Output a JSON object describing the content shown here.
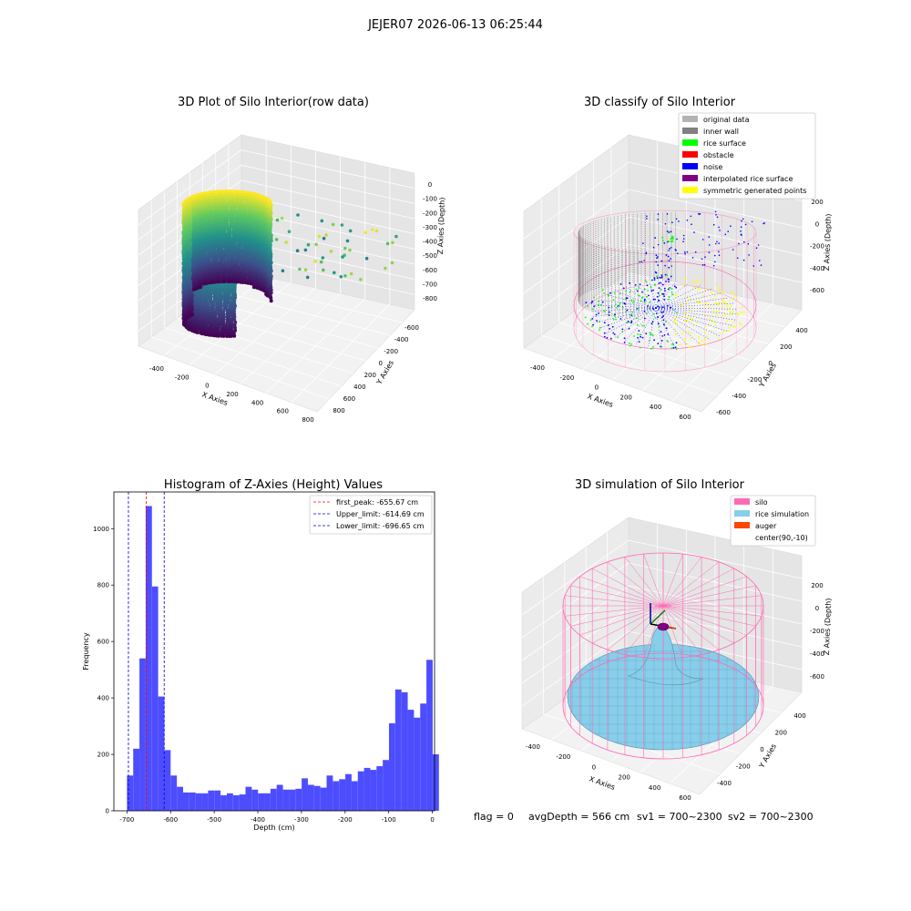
{
  "suptitle": "JEJER07 2026-06-13 06:25:44",
  "colors": {
    "viridis": [
      "#440154",
      "#3b528b",
      "#21918c",
      "#5ec962",
      "#fde725"
    ],
    "original_data": "#b3b3b3",
    "inner_wall": "#808080",
    "rice_surface": "#00ff00",
    "obstacle": "#ff0000",
    "noise": "#0000ff",
    "interpolated_rice_surface": "#800080",
    "symmetric_generated_points": "#ffff00",
    "silo": "#ff69b4",
    "rice_simulation": "#87ceeb",
    "auger": "#ff4500",
    "hist_bar": "#4d4dff"
  },
  "panels": {
    "p1": {
      "title": "3D Plot of Silo Interior(row data)",
      "xlabel": "X Axies",
      "ylabel": "Y Axies",
      "zlabel": "Z Axies (Depth)",
      "xticks": [
        "-400",
        "-200",
        "0",
        "200",
        "400",
        "600",
        "800"
      ],
      "yticks": [
        "-600",
        "-400",
        "-200",
        "0",
        "200",
        "400",
        "600",
        "800"
      ],
      "zticks": [
        "0",
        "-100",
        "-200",
        "-300",
        "-400",
        "-500",
        "-600",
        "-700",
        "-800"
      ]
    },
    "p2": {
      "title": "3D classify of Silo Interior",
      "xlabel": "X Axies",
      "ylabel": "Y Axies",
      "zlabel": "Z Axies (Depth)",
      "xticks": [
        "-400",
        "-200",
        "0",
        "200",
        "400",
        "600"
      ],
      "yticks": [
        "-600",
        "-400",
        "-200",
        "0",
        "200",
        "400"
      ],
      "zticks": [
        "200",
        "0",
        "-200",
        "-400",
        "-600"
      ],
      "legend": [
        {
          "label": "original data",
          "color": "#b3b3b3"
        },
        {
          "label": "inner wall",
          "color": "#808080"
        },
        {
          "label": "rice surface",
          "color": "#00ff00"
        },
        {
          "label": "obstacle",
          "color": "#ff0000"
        },
        {
          "label": "noise",
          "color": "#0000ff"
        },
        {
          "label": "interpolated rice surface",
          "color": "#800080"
        },
        {
          "label": "symmetric generated points",
          "color": "#ffff00"
        }
      ]
    },
    "p4": {
      "title": "3D simulation of Silo Interior",
      "xlabel": "X Axies",
      "ylabel": "Y Axies",
      "zlabel": "Z Axies (Depth)",
      "xticks": [
        "-400",
        "-200",
        "0",
        "200",
        "400",
        "600"
      ],
      "yticks": [
        "-400",
        "-200",
        "0",
        "200",
        "400"
      ],
      "zticks": [
        "200",
        "0",
        "-200",
        "-400",
        "-600"
      ],
      "legend": [
        {
          "label": "silo",
          "color": "#ff69b4"
        },
        {
          "label": "rice simulation",
          "color": "#87ceeb"
        },
        {
          "label": "auger",
          "color": "#ff4500"
        },
        {
          "label": "center(90,-10)",
          "color": ""
        }
      ]
    }
  },
  "footer": {
    "flag": "flag = 0",
    "avg": "avgDepth = 566 cm",
    "sv1": "sv1 = 700~2300",
    "sv2": "sv2 = 700~2300"
  },
  "chart_data": [
    {
      "type": "scatter",
      "title": "3D Plot of Silo Interior(row data)",
      "xlabel": "X Axies",
      "ylabel": "Y Axies",
      "zlabel": "Z Axies (Depth)",
      "xlim": [
        -500,
        800
      ],
      "ylim": [
        -650,
        850
      ],
      "zlim": [
        -850,
        0
      ],
      "colormap": "viridis",
      "grid": true
    },
    {
      "type": "scatter",
      "title": "3D classify of Silo Interior",
      "xlabel": "X Axies",
      "ylabel": "Y Axies",
      "zlabel": "Z Axies (Depth)",
      "xlim": [
        -500,
        650
      ],
      "ylim": [
        -650,
        450
      ],
      "zlim": [
        -700,
        250
      ],
      "legend_position": "top-right",
      "series": [
        {
          "name": "original data"
        },
        {
          "name": "inner wall"
        },
        {
          "name": "rice surface"
        },
        {
          "name": "obstacle"
        },
        {
          "name": "noise"
        },
        {
          "name": "interpolated rice surface"
        },
        {
          "name": "symmetric generated points"
        }
      ],
      "grid": true
    },
    {
      "type": "bar",
      "title": "Histogram of Z-Axies (Height) Values",
      "xlabel": "Depth (cm)",
      "ylabel": "Frequency",
      "xlim": [
        -730,
        5
      ],
      "ylim": [
        0,
        1130
      ],
      "xticks": [
        -700,
        -600,
        -500,
        -400,
        -300,
        -200,
        -100,
        0
      ],
      "yticks": [
        0,
        200,
        400,
        600,
        800,
        1000
      ],
      "bin_start": -700,
      "bin_width": 14.3,
      "values": [
        125,
        220,
        540,
        1080,
        795,
        405,
        215,
        125,
        85,
        65,
        65,
        62,
        62,
        72,
        72,
        55,
        62,
        55,
        58,
        85,
        75,
        62,
        62,
        78,
        92,
        75,
        75,
        78,
        115,
        92,
        88,
        82,
        125,
        105,
        112,
        130,
        105,
        140,
        152,
        145,
        158,
        180,
        310,
        430,
        420,
        358,
        330,
        380,
        535,
        200
      ],
      "vlines": [
        {
          "name": "first_peak: -655.67 cm",
          "x": -655.67,
          "color": "#ff0000"
        },
        {
          "name": "Upper_limit: -614.69 cm",
          "x": -614.69,
          "color": "#0000cc"
        },
        {
          "name": "Lower_limit: -696.65 cm",
          "x": -696.65,
          "color": "#0000cc"
        }
      ],
      "legend_position": "top-right",
      "grid": false
    },
    {
      "type": "area",
      "title": "3D simulation of Silo Interior",
      "xlabel": "X Axies",
      "ylabel": "Y Axies",
      "zlabel": "Z Axies (Depth)",
      "xlim": [
        -500,
        650
      ],
      "ylim": [
        -500,
        450
      ],
      "zlim": [
        -700,
        350
      ],
      "series": [
        {
          "name": "silo"
        },
        {
          "name": "rice simulation"
        },
        {
          "name": "auger"
        },
        {
          "name": "center(90,-10)"
        }
      ],
      "legend_position": "top-right",
      "grid": true
    }
  ]
}
